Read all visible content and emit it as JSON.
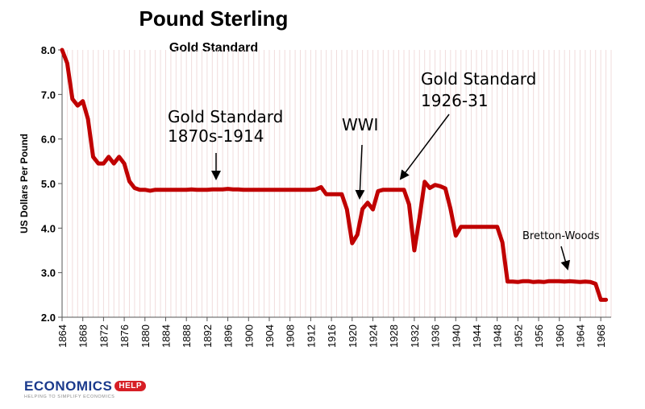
{
  "chart_data": {
    "type": "line",
    "title": "Pound Sterling",
    "subtitle": "Gold Standard",
    "xlabel": "",
    "ylabel": "US Dollars Per Pound",
    "ylim": [
      2.0,
      8.0
    ],
    "xlim": [
      1864,
      1970
    ],
    "grid": true,
    "legend": "none",
    "y_ticks": [
      "2.0",
      "3.0",
      "4.0",
      "5.0",
      "6.0",
      "7.0",
      "8.0"
    ],
    "x_ticks": [
      "1864",
      "1868",
      "1872",
      "1876",
      "1880",
      "1884",
      "1888",
      "1892",
      "1896",
      "1900",
      "1904",
      "1908",
      "1912",
      "1916",
      "1920",
      "1924",
      "1928",
      "1932",
      "1936",
      "1940",
      "1944",
      "1948",
      "1952",
      "1956",
      "1960",
      "1964",
      "1968"
    ],
    "series": [
      {
        "color": "#c00000",
        "x": [
          1864,
          1865,
          1866,
          1867,
          1868,
          1869,
          1870,
          1871,
          1872,
          1873,
          1874,
          1875,
          1876,
          1877,
          1878,
          1879,
          1880,
          1881,
          1882,
          1883,
          1884,
          1885,
          1886,
          1887,
          1888,
          1889,
          1890,
          1891,
          1892,
          1893,
          1894,
          1895,
          1896,
          1897,
          1898,
          1899,
          1900,
          1901,
          1902,
          1903,
          1904,
          1905,
          1906,
          1907,
          1908,
          1909,
          1910,
          1911,
          1912,
          1913,
          1914,
          1915,
          1916,
          1917,
          1918,
          1919,
          1920,
          1921,
          1922,
          1923,
          1924,
          1925,
          1926,
          1927,
          1928,
          1929,
          1930,
          1931,
          1932,
          1933,
          1934,
          1935,
          1936,
          1937,
          1938,
          1939,
          1940,
          1941,
          1942,
          1943,
          1944,
          1945,
          1946,
          1947,
          1948,
          1949,
          1950,
          1951,
          1952,
          1953,
          1954,
          1955,
          1956,
          1957,
          1958,
          1959,
          1960,
          1961,
          1962,
          1963,
          1964,
          1965,
          1966,
          1967,
          1968,
          1969
        ],
        "values": [
          8.0,
          7.7,
          6.9,
          6.75,
          6.85,
          6.45,
          5.6,
          5.45,
          5.45,
          5.6,
          5.45,
          5.6,
          5.45,
          5.05,
          4.9,
          4.86,
          4.86,
          4.84,
          4.86,
          4.86,
          4.86,
          4.86,
          4.86,
          4.86,
          4.86,
          4.87,
          4.86,
          4.86,
          4.86,
          4.87,
          4.87,
          4.87,
          4.88,
          4.87,
          4.87,
          4.86,
          4.86,
          4.86,
          4.86,
          4.86,
          4.86,
          4.86,
          4.86,
          4.86,
          4.86,
          4.86,
          4.86,
          4.86,
          4.86,
          4.87,
          4.92,
          4.76,
          4.76,
          4.76,
          4.76,
          4.42,
          3.66,
          3.85,
          4.43,
          4.57,
          4.42,
          4.83,
          4.86,
          4.86,
          4.86,
          4.86,
          4.86,
          4.53,
          3.5,
          4.23,
          5.04,
          4.9,
          4.97,
          4.94,
          4.89,
          4.43,
          3.83,
          4.03,
          4.03,
          4.03,
          4.03,
          4.03,
          4.03,
          4.03,
          4.03,
          3.68,
          2.8,
          2.8,
          2.79,
          2.81,
          2.81,
          2.79,
          2.8,
          2.79,
          2.81,
          2.81,
          2.81,
          2.8,
          2.81,
          2.8,
          2.79,
          2.8,
          2.79,
          2.75,
          2.39,
          2.39
        ]
      }
    ],
    "annotations": [
      {
        "lines": [
          "Gold Standard",
          "1870s-1914"
        ]
      },
      {
        "lines": [
          "WWI"
        ]
      },
      {
        "lines": [
          "Gold Standard",
          "1926-31"
        ]
      },
      {
        "lines": [
          "Bretton-Woods"
        ]
      }
    ]
  },
  "logo": {
    "main": "ECONOMICS",
    "badge": "HELP",
    "tagline": "HELPING TO SIMPLIFY ECONOMICS"
  }
}
